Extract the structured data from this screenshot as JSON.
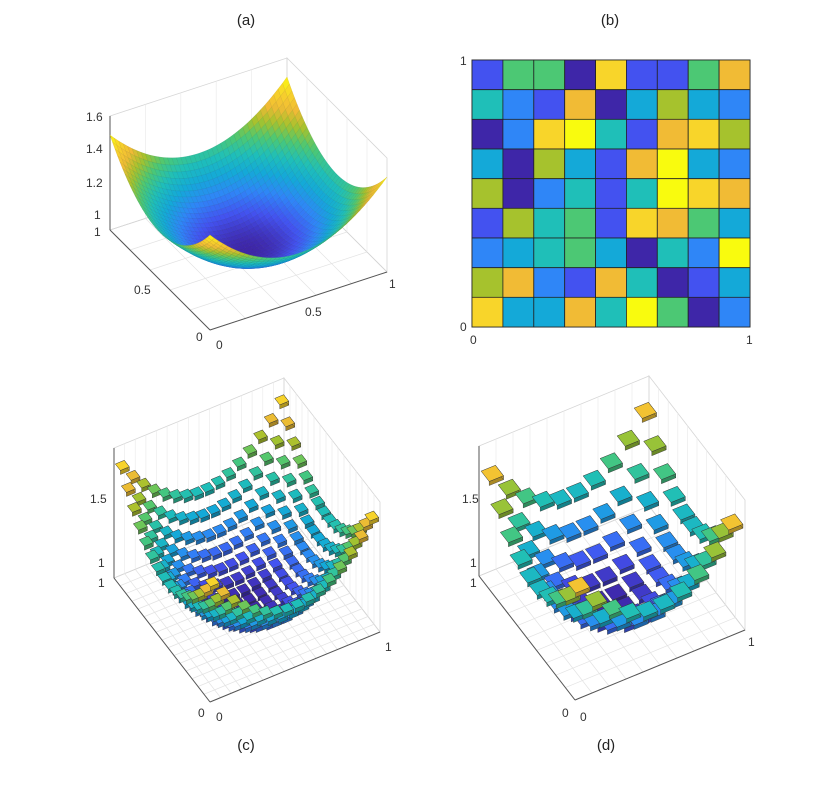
{
  "panel_labels": {
    "a": "(a)",
    "b": "(b)",
    "c": "(c)",
    "d": "(d)"
  },
  "colormap": [
    "#3e26a8",
    "#4352f0",
    "#2f86f7",
    "#14a9d8",
    "#1fbfb8",
    "#4cc874",
    "#a6c22d",
    "#f1bb35",
    "#f8d52a",
    "#f9fb0e"
  ],
  "chart_data": [
    {
      "panel": "(a)",
      "type": "area",
      "surface": "z = 1 + (x-0.5)^2 + (y-0.5)^2 (estimated paraboloid)",
      "xlim": [
        0,
        1
      ],
      "ylim": [
        0,
        1
      ],
      "zlim": [
        1,
        1.6
      ],
      "x_ticks": [
        "0",
        "0.5",
        "1"
      ],
      "y_ticks": [
        "0",
        "0.5",
        "1"
      ],
      "z_ticks": [
        "1",
        "1.2",
        "1.4",
        "1.6"
      ],
      "grid": true
    },
    {
      "panel": "(b)",
      "type": "heatmap",
      "xlim": [
        0,
        1
      ],
      "ylim": [
        0,
        1
      ],
      "x_ticks": [
        "0",
        "1"
      ],
      "y_ticks": [
        "0",
        "1"
      ],
      "values": [
        [
          1,
          5,
          5,
          0,
          8,
          1,
          1,
          5,
          7
        ],
        [
          4,
          2,
          1,
          7,
          0,
          3,
          6,
          3,
          2
        ],
        [
          0,
          2,
          8,
          9,
          4,
          1,
          7,
          8,
          6
        ],
        [
          3,
          0,
          6,
          3,
          1,
          7,
          9,
          3,
          2
        ],
        [
          6,
          0,
          2,
          4,
          1,
          4,
          9,
          8,
          7
        ],
        [
          1,
          6,
          4,
          5,
          1,
          8,
          7,
          5,
          3
        ],
        [
          2,
          3,
          4,
          5,
          3,
          0,
          4,
          2,
          9
        ],
        [
          6,
          7,
          2,
          1,
          7,
          4,
          0,
          1,
          3
        ],
        [
          8,
          3,
          3,
          7,
          4,
          9,
          5,
          0,
          2
        ]
      ]
    },
    {
      "panel": "(c)",
      "type": "bar",
      "description": "3-D grid of square tiles sampled from the same paraboloid on a 16x16 grid",
      "grid_size": 16,
      "zlim": [
        1,
        1.5
      ],
      "x_ticks": [
        "0",
        "1"
      ],
      "y_ticks": [
        "0",
        "1"
      ],
      "z_ticks": [
        "1",
        "1.5"
      ]
    },
    {
      "panel": "(d)",
      "type": "bar",
      "description": "3-D grid of square tiles sampled from the same paraboloid on a 10x10 grid",
      "grid_size": 10,
      "zlim": [
        1,
        1.5
      ],
      "x_ticks": [
        "0",
        "1"
      ],
      "y_ticks": [
        "0",
        "1"
      ],
      "z_ticks": [
        "1",
        "1.5"
      ]
    }
  ]
}
